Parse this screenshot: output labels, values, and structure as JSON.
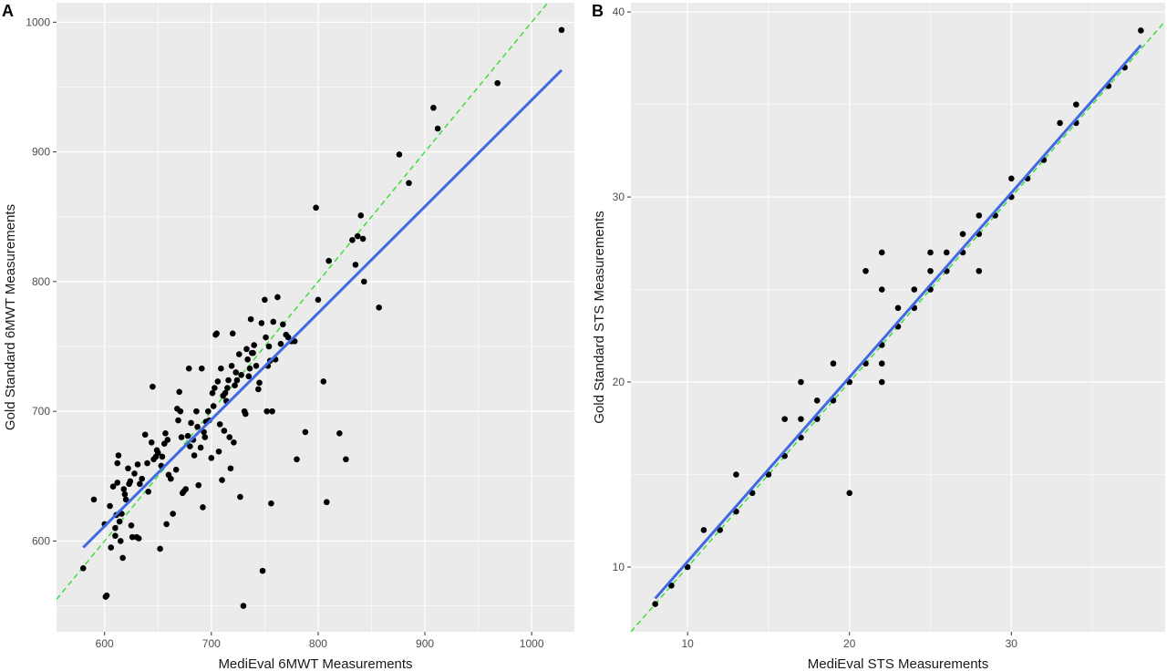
{
  "colors": {
    "panel_background": "#ebebeb",
    "grid_line": "#ffffff",
    "point": "#000000",
    "fit_line": "#4169e1",
    "identity_line": "#33dd33"
  },
  "chart_data": [
    {
      "type": "scatter",
      "panel_tag": "A",
      "xlabel": "MediEval 6MWT Measurements",
      "ylabel": "Gold Standard 6MWT Measurements",
      "xlim": [
        555,
        1040
      ],
      "ylim": [
        530,
        1015
      ],
      "x_ticks": [
        600,
        700,
        800,
        900,
        1000
      ],
      "y_ticks": [
        600,
        700,
        800,
        900,
        1000
      ],
      "grid": true,
      "legend": "none",
      "points": [
        [
          580,
          579
        ],
        [
          590,
          632
        ],
        [
          600,
          613
        ],
        [
          601,
          557
        ],
        [
          602,
          558
        ],
        [
          605,
          627
        ],
        [
          606,
          595
        ],
        [
          608,
          642
        ],
        [
          610,
          604
        ],
        [
          610,
          610
        ],
        [
          611,
          620
        ],
        [
          612,
          645
        ],
        [
          612,
          660
        ],
        [
          613,
          666
        ],
        [
          614,
          615
        ],
        [
          615,
          600
        ],
        [
          616,
          621
        ],
        [
          617,
          587
        ],
        [
          618,
          640
        ],
        [
          619,
          636
        ],
        [
          620,
          632
        ],
        [
          622,
          656
        ],
        [
          623,
          644
        ],
        [
          624,
          646
        ],
        [
          625,
          612
        ],
        [
          626,
          603
        ],
        [
          628,
          652
        ],
        [
          630,
          603
        ],
        [
          631,
          659
        ],
        [
          632,
          602
        ],
        [
          633,
          644
        ],
        [
          635,
          648
        ],
        [
          638,
          682
        ],
        [
          640,
          660
        ],
        [
          641,
          638
        ],
        [
          644,
          676
        ],
        [
          645,
          719
        ],
        [
          646,
          663
        ],
        [
          648,
          665
        ],
        [
          649,
          670
        ],
        [
          650,
          668
        ],
        [
          652,
          594
        ],
        [
          653,
          658
        ],
        [
          654,
          665
        ],
        [
          656,
          675
        ],
        [
          657,
          683
        ],
        [
          658,
          613
        ],
        [
          659,
          678
        ],
        [
          660,
          651
        ],
        [
          662,
          648
        ],
        [
          664,
          621
        ],
        [
          667,
          655
        ],
        [
          668,
          702
        ],
        [
          669,
          693
        ],
        [
          670,
          715
        ],
        [
          671,
          700
        ],
        [
          672,
          680
        ],
        [
          673,
          637
        ],
        [
          674,
          638
        ],
        [
          676,
          640
        ],
        [
          678,
          681
        ],
        [
          679,
          733
        ],
        [
          680,
          673
        ],
        [
          681,
          691
        ],
        [
          683,
          678
        ],
        [
          684,
          666
        ],
        [
          686,
          700
        ],
        [
          687,
          688
        ],
        [
          688,
          643
        ],
        [
          690,
          672
        ],
        [
          691,
          733
        ],
        [
          692,
          626
        ],
        [
          693,
          684
        ],
        [
          694,
          680
        ],
        [
          695,
          692
        ],
        [
          697,
          700
        ],
        [
          698,
          693
        ],
        [
          700,
          664
        ],
        [
          701,
          714
        ],
        [
          702,
          704
        ],
        [
          703,
          718
        ],
        [
          704,
          759
        ],
        [
          705,
          760
        ],
        [
          706,
          723
        ],
        [
          707,
          669
        ],
        [
          708,
          690
        ],
        [
          709,
          733
        ],
        [
          710,
          647
        ],
        [
          711,
          712
        ],
        [
          712,
          685
        ],
        [
          713,
          714
        ],
        [
          714,
          708
        ],
        [
          715,
          718
        ],
        [
          716,
          724
        ],
        [
          717,
          680
        ],
        [
          718,
          656
        ],
        [
          719,
          735
        ],
        [
          720,
          760
        ],
        [
          721,
          676
        ],
        [
          722,
          720
        ],
        [
          723,
          730
        ],
        [
          724,
          724
        ],
        [
          726,
          744
        ],
        [
          727,
          634
        ],
        [
          728,
          728
        ],
        [
          730,
          550
        ],
        [
          731,
          700
        ],
        [
          732,
          698
        ],
        [
          733,
          748
        ],
        [
          734,
          740
        ],
        [
          735,
          727
        ],
        [
          736,
          733
        ],
        [
          737,
          771
        ],
        [
          738,
          745
        ],
        [
          739,
          745
        ],
        [
          740,
          751
        ],
        [
          742,
          735
        ],
        [
          744,
          717
        ],
        [
          745,
          722
        ],
        [
          747,
          768
        ],
        [
          748,
          577
        ],
        [
          750,
          786
        ],
        [
          751,
          757
        ],
        [
          752,
          700
        ],
        [
          753,
          735
        ],
        [
          754,
          750
        ],
        [
          755,
          739
        ],
        [
          756,
          629
        ],
        [
          757,
          700
        ],
        [
          758,
          769
        ],
        [
          760,
          740
        ],
        [
          762,
          788
        ],
        [
          765,
          752
        ],
        [
          767,
          767
        ],
        [
          770,
          759
        ],
        [
          772,
          757
        ],
        [
          775,
          754
        ],
        [
          778,
          754
        ],
        [
          780,
          663
        ],
        [
          788,
          684
        ],
        [
          798,
          857
        ],
        [
          800,
          786
        ],
        [
          805,
          723
        ],
        [
          808,
          630
        ],
        [
          810,
          816
        ],
        [
          820,
          683
        ],
        [
          826,
          663
        ],
        [
          832,
          832
        ],
        [
          835,
          813
        ],
        [
          837,
          835
        ],
        [
          840,
          851
        ],
        [
          842,
          833
        ],
        [
          843,
          800
        ],
        [
          857,
          780
        ],
        [
          876,
          898
        ],
        [
          885,
          876
        ],
        [
          908,
          934
        ],
        [
          912,
          918
        ],
        [
          968,
          953
        ],
        [
          1028,
          994
        ]
      ],
      "fit_line": {
        "x": [
          580,
          1028
        ],
        "y": [
          595,
          963
        ]
      },
      "identity_line": {
        "x": [
          555,
          1040
        ],
        "y": [
          555,
          1040
        ]
      }
    },
    {
      "type": "scatter",
      "panel_tag": "B",
      "xlabel": "MediEval STS Measurements",
      "ylabel": "Gold Standard STS Measurements",
      "xlim": [
        6.5,
        39.5
      ],
      "ylim": [
        6.5,
        40.5
      ],
      "x_ticks": [
        10,
        20,
        30
      ],
      "y_ticks": [
        10,
        20,
        30,
        40
      ],
      "grid": true,
      "legend": "none",
      "points": [
        [
          8,
          8
        ],
        [
          9,
          9
        ],
        [
          10,
          10
        ],
        [
          11,
          12
        ],
        [
          12,
          12
        ],
        [
          13,
          13
        ],
        [
          13,
          15
        ],
        [
          14,
          14
        ],
        [
          15,
          15
        ],
        [
          16,
          16
        ],
        [
          16,
          18
        ],
        [
          17,
          17
        ],
        [
          17,
          18
        ],
        [
          17,
          20
        ],
        [
          18,
          18
        ],
        [
          18,
          19
        ],
        [
          19,
          19
        ],
        [
          19,
          21
        ],
        [
          20,
          20
        ],
        [
          20,
          14
        ],
        [
          21,
          21
        ],
        [
          21,
          26
        ],
        [
          22,
          20
        ],
        [
          22,
          21
        ],
        [
          22,
          22
        ],
        [
          22,
          25
        ],
        [
          22,
          27
        ],
        [
          23,
          23
        ],
        [
          23,
          24
        ],
        [
          24,
          24
        ],
        [
          24,
          25
        ],
        [
          25,
          25
        ],
        [
          25,
          26
        ],
        [
          25,
          27
        ],
        [
          26,
          26
        ],
        [
          26,
          27
        ],
        [
          27,
          27
        ],
        [
          27,
          28
        ],
        [
          28,
          28
        ],
        [
          28,
          29
        ],
        [
          28,
          26
        ],
        [
          29,
          29
        ],
        [
          30,
          30
        ],
        [
          30,
          31
        ],
        [
          31,
          31
        ],
        [
          32,
          32
        ],
        [
          33,
          34
        ],
        [
          34,
          34
        ],
        [
          34,
          35
        ],
        [
          36,
          36
        ],
        [
          37,
          37
        ],
        [
          38,
          39
        ]
      ],
      "fit_line": {
        "x": [
          8,
          38
        ],
        "y": [
          8.3,
          38.2
        ]
      },
      "identity_line": {
        "x": [
          6.5,
          39.5
        ],
        "y": [
          6.5,
          39.5
        ]
      }
    }
  ]
}
